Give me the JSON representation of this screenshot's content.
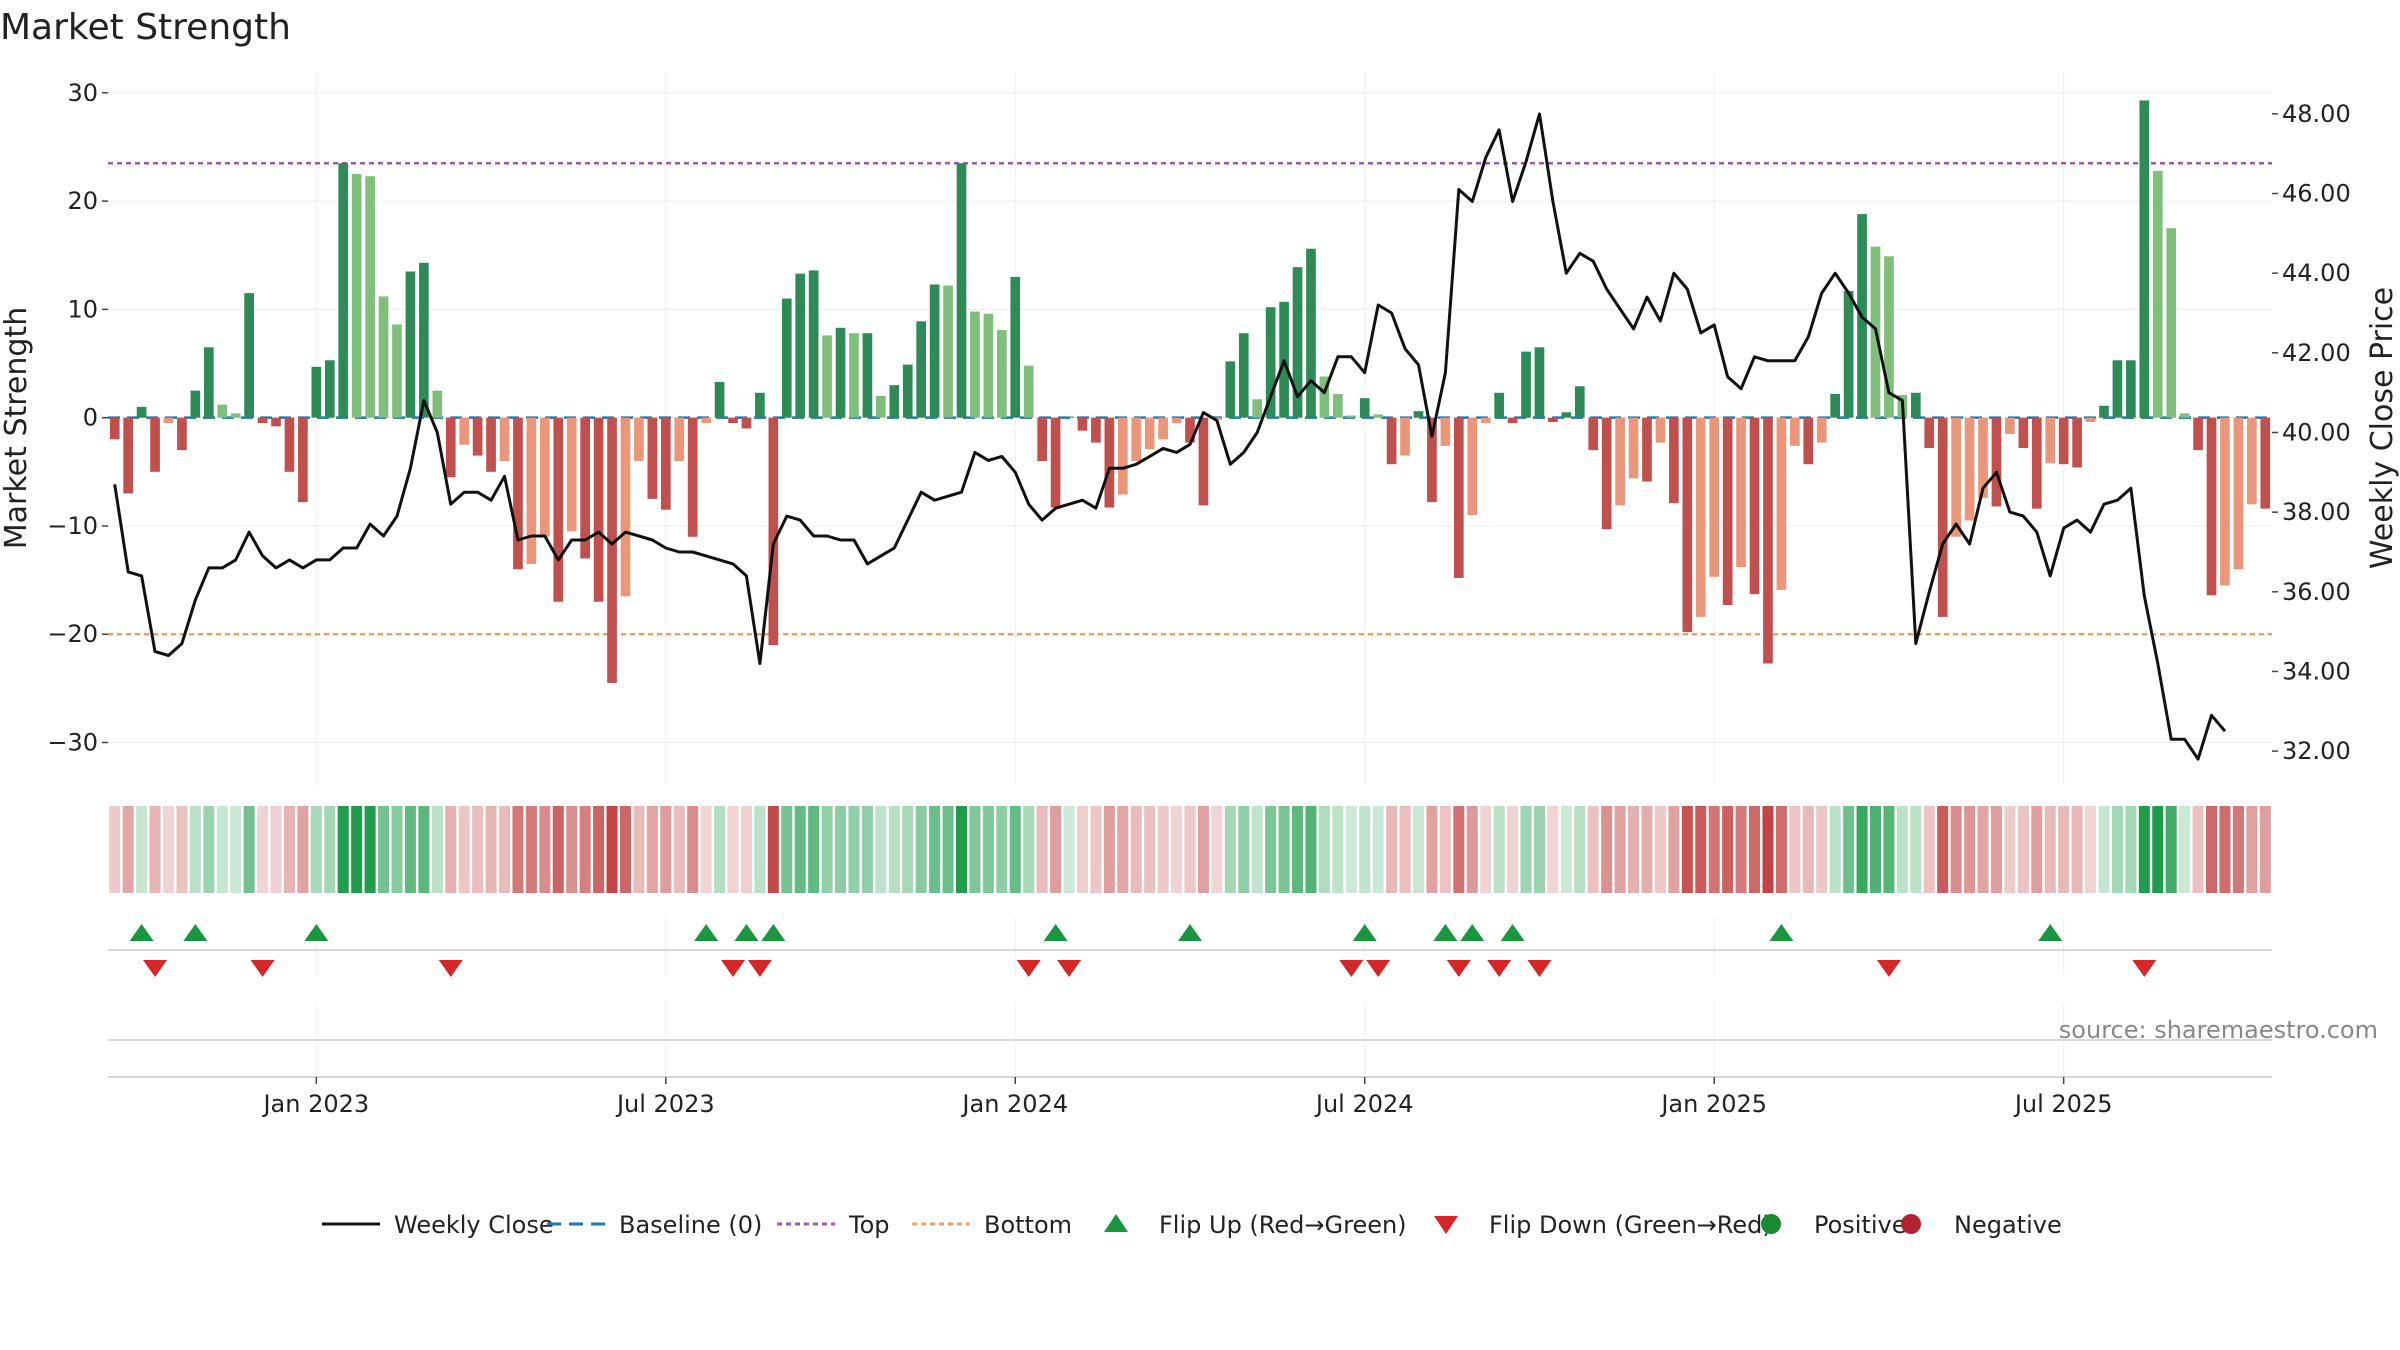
{
  "chart_data": {
    "type": "bar",
    "title": "Market Strength",
    "source": "source: sharemaestro.com",
    "ylabel": "Market Strength",
    "y2label": "Weekly Close Price",
    "ylim": [
      -33,
      31
    ],
    "y2lim": [
      31.4,
      48.8
    ],
    "yticks": [
      30,
      20,
      10,
      0,
      -10,
      -20,
      -30
    ],
    "ytick_labels": [
      "30",
      "20",
      "10",
      "0",
      "−10",
      "−20",
      "−30"
    ],
    "y2ticks": [
      48,
      46,
      44,
      42,
      40,
      38,
      36,
      34,
      32
    ],
    "y2tick_labels": [
      "48.00",
      "46.00",
      "44.00",
      "42.00",
      "40.00",
      "38.00",
      "36.00",
      "34.00",
      "32.00"
    ],
    "xticks": [
      {
        "label": "Jan 2023",
        "index": 15
      },
      {
        "label": "Jul 2023",
        "index": 41
      },
      {
        "label": "Jan 2024",
        "index": 67
      },
      {
        "label": "Jul 2024",
        "index": 93
      },
      {
        "label": "Jan 2025",
        "index": 119
      },
      {
        "label": "Jul 2025",
        "index": 145
      }
    ],
    "top_line": 23.5,
    "bottom_line": -20,
    "grid": true,
    "legend_position": "bottom-center",
    "legend": [
      {
        "label": "Weekly Close",
        "kind": "line",
        "color": "#111111"
      },
      {
        "label": "Baseline (0)",
        "kind": "dash",
        "color": "#1f77b4"
      },
      {
        "label": "Top",
        "kind": "dot",
        "color": "#9b59b6"
      },
      {
        "label": "Bottom",
        "kind": "dot",
        "color": "#f0a060"
      },
      {
        "label": "Flip Up (Red→Green)",
        "kind": "up",
        "color": "#1a9641"
      },
      {
        "label": "Flip Down (Green→Red)",
        "kind": "down",
        "color": "#d62728"
      },
      {
        "label": "Positive",
        "kind": "circle",
        "color": "#1a8a2e"
      },
      {
        "label": "Negative",
        "kind": "circle",
        "color": "#b22230"
      }
    ],
    "colors": {
      "pos_strong": "#2e8b57",
      "pos_light": "#7fbf7b",
      "neg_strong": "#c0504d",
      "neg_light": "#e9967a",
      "close": "#111111",
      "baseline": "#1f77b4",
      "top": "#9b59b6",
      "bottom": "#f0a060",
      "flip_up": "#1a9641",
      "flip_down": "#d62728"
    },
    "strength": [
      -2,
      -7,
      1,
      -5,
      -0.5,
      -3,
      2.5,
      6.5,
      1.2,
      0.4,
      11.5,
      -0.5,
      -0.8,
      -5,
      -7.8,
      4.7,
      5.3,
      23.5,
      22.5,
      22.3,
      11.2,
      8.6,
      13.5,
      14.3,
      2.5,
      -5.5,
      -2.5,
      -3.5,
      -5,
      -4,
      -14,
      -13.5,
      -11,
      -17,
      -10.5,
      -13,
      -17,
      -24.5,
      -16.5,
      -4,
      -7.5,
      -8.5,
      -4,
      -11,
      -0.5,
      3.3,
      -0.5,
      -1,
      2.3,
      -21,
      11,
      13.3,
      13.6,
      7.6,
      8.3,
      7.8,
      7.8,
      2,
      3,
      4.9,
      8.9,
      12.3,
      12.2,
      23.5,
      9.8,
      9.6,
      8.1,
      13,
      4.8,
      -4,
      -8.3,
      0.1,
      -1.2,
      -2.3,
      -8.3,
      -7.1,
      -4,
      -2.9,
      -2,
      -0.5,
      -2.3,
      -8.1,
      -0.2,
      5.2,
      7.8,
      1.7,
      10.2,
      10.7,
      13.9,
      15.6,
      3.8,
      2.2,
      0.2,
      1.8,
      0.3,
      -4.3,
      -3.5,
      0.6,
      -7.8,
      -2.6,
      -14.8,
      -9,
      -0.5,
      2.3,
      -0.5,
      6.1,
      6.5,
      -0.4,
      0.5,
      2.9,
      -3,
      -10.3,
      -8.1,
      -5.6,
      -5.9,
      -2.3,
      -7.9,
      -19.8,
      -18.4,
      -14.7,
      -17.3,
      -13.8,
      -16.3,
      -22.7,
      -15.9,
      -2.6,
      -4.3,
      -2.3,
      2.2,
      11.7,
      18.8,
      15.8,
      14.9,
      2.1,
      2.3,
      -2.8,
      -18.4,
      -11,
      -9.5,
      -7.4,
      -8.2,
      -1.5,
      -2.8,
      -8.4,
      -4.2,
      -4.3,
      -4.6,
      -0.4,
      1.1,
      5.3,
      5.3,
      29.3,
      22.8,
      17.5,
      0.4,
      -3,
      -16.4,
      -15.5,
      -14,
      -8,
      -8.4
    ],
    "close": [
      38.7,
      36.5,
      36.4,
      34.5,
      34.4,
      34.7,
      35.8,
      36.6,
      36.6,
      36.8,
      37.5,
      36.9,
      36.6,
      36.8,
      36.6,
      36.8,
      36.8,
      37.1,
      37.1,
      37.7,
      37.4,
      37.9,
      39.1,
      40.8,
      40.0,
      38.2,
      38.5,
      38.5,
      38.3,
      38.9,
      37.3,
      37.4,
      37.4,
      36.8,
      37.3,
      37.3,
      37.5,
      37.2,
      37.5,
      37.4,
      37.3,
      37.1,
      37.0,
      37.0,
      36.9,
      36.8,
      36.7,
      36.4,
      34.2,
      37.2,
      37.9,
      37.8,
      37.4,
      37.4,
      37.3,
      37.3,
      36.7,
      36.9,
      37.1,
      37.8,
      38.5,
      38.3,
      38.4,
      38.5,
      39.5,
      39.3,
      39.4,
      39.0,
      38.2,
      37.8,
      38.1,
      38.2,
      38.3,
      38.1,
      39.1,
      39.1,
      39.2,
      39.4,
      39.6,
      39.5,
      39.7,
      40.5,
      40.3,
      39.2,
      39.5,
      40.0,
      40.9,
      41.8,
      40.9,
      41.3,
      41.0,
      41.9,
      41.9,
      41.5,
      43.2,
      43.0,
      42.1,
      41.7,
      39.9,
      41.5,
      46.1,
      45.8,
      46.9,
      47.6,
      45.8,
      46.8,
      48.0,
      45.8,
      44.0,
      44.5,
      44.3,
      43.6,
      43.1,
      42.6,
      43.4,
      42.8,
      44.0,
      43.6,
      42.5,
      42.7,
      41.4,
      41.1,
      41.9,
      41.8,
      41.8,
      41.8,
      42.4,
      43.5,
      44.0,
      43.5,
      42.9,
      42.6,
      41.0,
      40.8,
      34.7,
      36.0,
      37.2,
      37.7,
      37.2,
      38.6,
      39.0,
      38.0,
      37.9,
      37.5,
      36.4,
      37.6,
      37.8,
      37.5,
      38.2,
      38.3,
      38.6,
      35.9,
      34.2,
      32.3,
      32.3,
      31.8,
      32.9,
      32.5
    ],
    "flips_up": [
      2,
      6,
      15,
      44,
      47,
      49,
      70,
      80,
      93,
      99,
      101,
      104,
      124,
      144
    ],
    "flips_down": [
      3,
      11,
      25,
      46,
      48,
      68,
      71,
      92,
      94,
      100,
      103,
      106,
      132,
      151
    ]
  }
}
